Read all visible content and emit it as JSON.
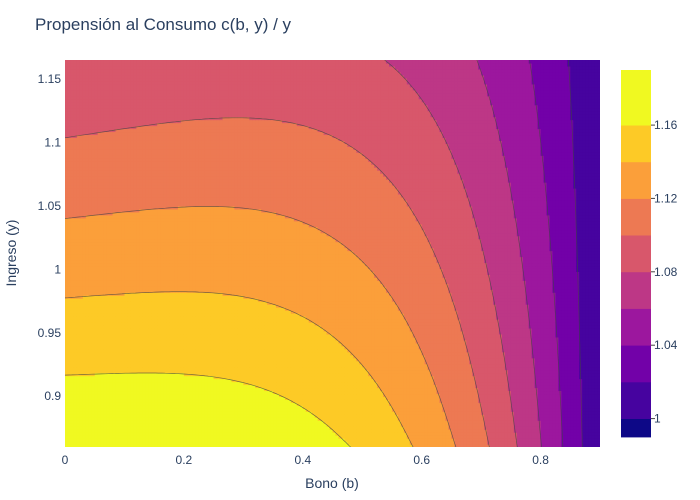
{
  "chart_data": {
    "type": "contour",
    "title": "Propensión al Consumo c(b, y) / y",
    "xlabel": "Bono (b)",
    "ylabel": "Ingreso (y)",
    "xlim": [
      0,
      0.9
    ],
    "ylim": [
      0.86,
      1.165
    ],
    "x_ticks": [
      0,
      0.2,
      0.4,
      0.6,
      0.8
    ],
    "x_tick_labels": [
      "0",
      "0.2",
      "0.4",
      "0.6",
      "0.8"
    ],
    "y_ticks": [
      0.9,
      0.95,
      1,
      1.05,
      1.1,
      1.15
    ],
    "y_tick_labels": [
      "0.9",
      "0.95",
      "1",
      "1.05",
      "1.1",
      "1.15"
    ],
    "z_range": [
      0.99,
      1.19
    ],
    "contour_start": 1.0,
    "contour_size": 0.02,
    "colorbar_ticks": [
      1,
      1.04,
      1.08,
      1.12,
      1.16
    ],
    "colorbar_tick_labels": [
      "1",
      "1.04",
      "1.08",
      "1.12",
      "1.16"
    ],
    "colorscale": [
      "#0d0887",
      "#46039f",
      "#7201a8",
      "#9c179e",
      "#bd3786",
      "#d8576b",
      "#ed7953",
      "#fb9f3a",
      "#fdca26",
      "#f0f921"
    ],
    "line_color": "#444444",
    "corner_values": {
      "b0_y0.86": 1.18,
      "b0.9_any_y": 1.0,
      "b0_y1.165": 1.08
    },
    "grid": false
  }
}
